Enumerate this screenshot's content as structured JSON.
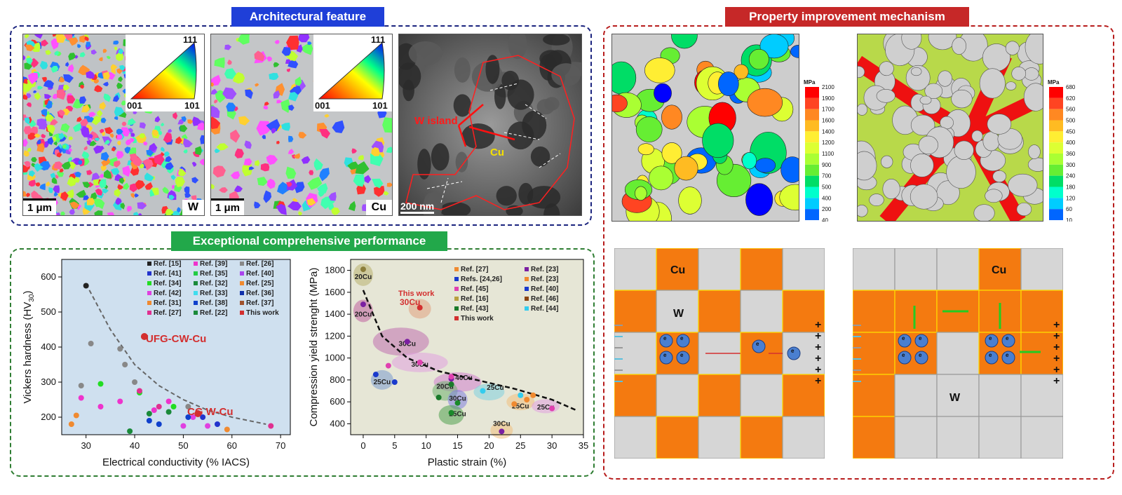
{
  "sections": {
    "architectural": "Architectural feature",
    "property": "Property improvement mechanism",
    "performance": "Exceptional comprehensive performance"
  },
  "ebsd": {
    "w": {
      "scale": "1 μm",
      "label": "W"
    },
    "cu": {
      "scale": "1 μm",
      "label": "Cu"
    },
    "ipf_111": "111",
    "ipf_001": "001",
    "ipf_101": "101"
  },
  "tem": {
    "scale": "200 nm",
    "w_island": "W island",
    "cu": "Cu"
  },
  "stress_maps": {
    "unit": "MPa",
    "left_ticks": [
      "2100",
      "1900",
      "1700",
      "1600",
      "1400",
      "1200",
      "1100",
      "900",
      "700",
      "500",
      "400",
      "200",
      "40"
    ],
    "right_ticks": [
      "680",
      "620",
      "560",
      "500",
      "450",
      "400",
      "360",
      "300",
      "240",
      "180",
      "120",
      "60",
      "10"
    ]
  },
  "schematic": {
    "cu": "Cu",
    "w": "W",
    "electron": "e",
    "colors": {
      "copper": "#f47a10",
      "tungsten": "#d6d6d6",
      "border": "#ffe000",
      "arrow_green": "#22cc22"
    }
  },
  "chart_data": [
    {
      "type": "scatter",
      "title": "",
      "xlabel": "Electrical conductivity (% IACS)",
      "ylabel": "Vickers hardness (HV30)",
      "ylabel_main": "Vickers hardness (HV",
      "ylabel_sub": "30",
      "ylabel_end": ")",
      "xlim": [
        25,
        72
      ],
      "ylim": [
        150,
        650
      ],
      "xticks": [
        "30",
        "40",
        "50",
        "60",
        "70"
      ],
      "yticks": [
        "200",
        "300",
        "400",
        "500",
        "600"
      ],
      "legend_position": "top-right",
      "legend": [
        "Ref. [15]",
        "Ref. [39]",
        "Ref. [26]",
        "Ref. [41]",
        "Ref. [35]",
        "Ref. [40]",
        "Ref. [34]",
        "Ref. [32]",
        "Ref. [25]",
        "Ref. [42]",
        "Ref. [33]",
        "Ref. [36]",
        "Ref. [31]",
        "Ref. [38]",
        "Ref. [37]",
        "Ref. [27]",
        "Ref. [22]",
        "This work"
      ],
      "annotations": {
        "ufg": "UFG-CW-Cu",
        "cg": "CG W-Cu"
      },
      "trend_points": [
        [
          30,
          580
        ],
        [
          35,
          450
        ],
        [
          40,
          350
        ],
        [
          45,
          290
        ],
        [
          50,
          250
        ],
        [
          55,
          220
        ],
        [
          60,
          200
        ],
        [
          67,
          180
        ]
      ],
      "series": [
        {
          "name": "Ref. [15]",
          "points": [
            [
              30,
              575
            ]
          ]
        },
        {
          "name": "Ref. [26]",
          "points": [
            [
              31,
              410
            ],
            [
              37,
              395
            ],
            [
              38,
              350
            ],
            [
              40,
              300
            ],
            [
              29,
              290
            ],
            [
              51,
              230
            ]
          ]
        },
        {
          "name": "Ref. [34]",
          "points": [
            [
              33,
              295
            ],
            [
              41,
              270
            ],
            [
              48,
              230
            ]
          ]
        },
        {
          "name": "Ref. [39]",
          "points": [
            [
              29,
              255
            ],
            [
              33,
              230
            ],
            [
              37,
              245
            ],
            [
              44,
              220
            ],
            [
              47,
              245
            ]
          ]
        },
        {
          "name": "Ref. [41]",
          "points": [
            [
              54,
              200
            ],
            [
              57,
              180
            ]
          ]
        },
        {
          "name": "Ref. [31]",
          "points": [
            [
              27,
              180
            ],
            [
              28,
              205
            ],
            [
              59,
              165
            ]
          ]
        },
        {
          "name": "Ref. [42]",
          "points": [
            [
              50,
              175
            ],
            [
              52,
              200
            ],
            [
              55,
              175
            ]
          ]
        },
        {
          "name": "Ref. [32]",
          "points": [
            [
              39,
              160
            ],
            [
              43,
              210
            ],
            [
              47,
              215
            ]
          ]
        },
        {
          "name": "Ref. [38]",
          "points": [
            [
              43,
              190
            ],
            [
              45,
              180
            ],
            [
              51,
              200
            ]
          ]
        },
        {
          "name": "Ref. [27]",
          "points": [
            [
              41,
              275
            ],
            [
              45,
              230
            ],
            [
              68,
              175
            ]
          ]
        },
        {
          "name": "This work",
          "points": [
            [
              42,
              430
            ],
            [
              53,
              210
            ]
          ]
        }
      ]
    },
    {
      "type": "scatter",
      "title": "",
      "xlabel": "Plastic strain (%)",
      "ylabel": "Compression yield strenght (MPa)",
      "xlim": [
        -2,
        35
      ],
      "ylim": [
        300,
        1900
      ],
      "xticks": [
        "0",
        "5",
        "10",
        "15",
        "20",
        "25",
        "30",
        "35"
      ],
      "yticks": [
        "400",
        "600",
        "800",
        "1000",
        "1200",
        "1400",
        "1600",
        "1800"
      ],
      "legend_position": "top-right",
      "legend": [
        "Ref. [27]",
        "Ref. [23]",
        "Refs. [24,26]",
        "Ref. [23]",
        "Ref. [45]",
        "Ref. [40]",
        "Ref. [16]",
        "Ref. [46]",
        "Ref. [43]",
        "Ref. [44]",
        "This work"
      ],
      "annotations": {
        "w1": "This work",
        "w2": "30Cu"
      },
      "region_labels": [
        "20Cu",
        "20Cu",
        "30Cu",
        "30Cu",
        "40Cu",
        "25Cu",
        "20Cu",
        "30Cu",
        "25Cu",
        "25Cu",
        "25Cu",
        "25Cu",
        "30Cu"
      ],
      "trend_points": [
        [
          0,
          1620
        ],
        [
          3,
          1200
        ],
        [
          7,
          1000
        ],
        [
          12,
          880
        ],
        [
          18,
          800
        ],
        [
          24,
          720
        ],
        [
          30,
          620
        ],
        [
          34,
          520
        ]
      ],
      "series": [
        {
          "name": "Ref. [16]",
          "points": [
            [
              0,
              1810
            ]
          ]
        },
        {
          "name": "Ref. [23]",
          "points": [
            [
              0,
              1490
            ],
            [
              7,
              1150
            ],
            [
              14,
              810
            ],
            [
              22,
              330
            ]
          ]
        },
        {
          "name": "Ref. [45]",
          "points": [
            [
              4,
              930
            ],
            [
              9,
              960
            ],
            [
              14,
              830
            ],
            [
              30,
              540
            ]
          ]
        },
        {
          "name": "Ref. [40]",
          "points": [
            [
              2,
              850
            ],
            [
              5,
              780
            ]
          ]
        },
        {
          "name": "Ref. [43]",
          "points": [
            [
              14,
              760
            ],
            [
              12,
              640
            ]
          ]
        },
        {
          "name": "Refs. [24,26]",
          "points": [
            [
              15,
              590
            ],
            [
              14,
              500
            ]
          ]
        },
        {
          "name": "Ref. [44]",
          "points": [
            [
              19,
              700
            ],
            [
              25,
              660
            ]
          ]
        },
        {
          "name": "Ref. [27]",
          "points": [
            [
              24,
              580
            ],
            [
              26,
              620
            ],
            [
              27,
              660
            ]
          ]
        },
        {
          "name": "This work",
          "points": [
            [
              9,
              1460
            ]
          ]
        }
      ]
    }
  ]
}
